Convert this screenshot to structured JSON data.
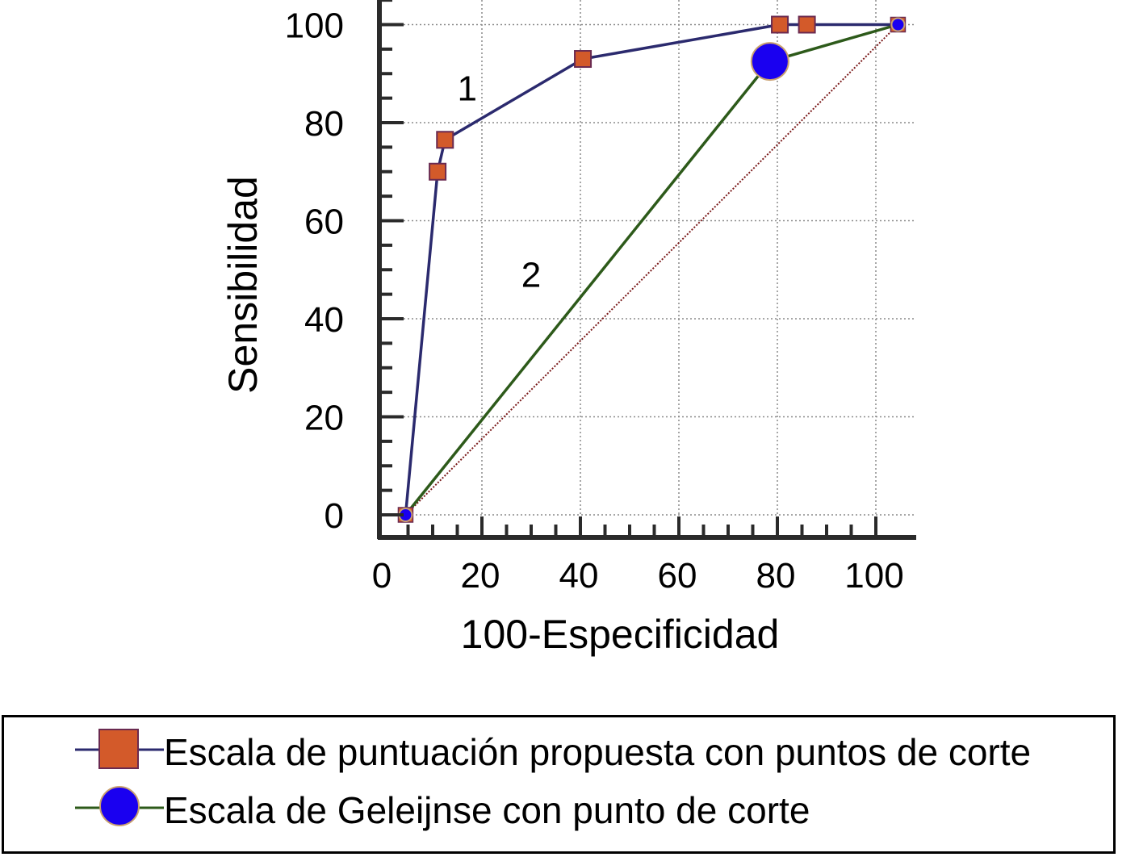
{
  "chart_data": {
    "type": "line",
    "xlabel": "100-Especificidad",
    "ylabel": "Sensibilidad",
    "xlim": [
      0,
      103
    ],
    "ylim": [
      -5,
      105
    ],
    "xticks": [
      0,
      20,
      40,
      60,
      80,
      100
    ],
    "yticks": [
      0,
      20,
      40,
      60,
      80,
      100
    ],
    "grid": true,
    "legend_position": "bottom",
    "series": [
      {
        "name": "Escala de puntuación propuesta con puntos de corte",
        "color": "#2b2a6e",
        "marker": "square",
        "marker_color": "#d35a2a",
        "x": [
          4.5,
          11,
          12.5,
          40.5,
          80.5,
          86,
          104.5
        ],
        "y": [
          0,
          70,
          76.5,
          93,
          100,
          100,
          100
        ]
      },
      {
        "name": "Escala de Geleijnse con punto de corte",
        "color": "#2d5a1a",
        "marker": "circle",
        "marker_color": "#1a00f0",
        "x": [
          4.5,
          78.5,
          104.5
        ],
        "y": [
          0,
          92.5,
          100
        ]
      }
    ],
    "reference_line": {
      "x": [
        4.5,
        104.5
      ],
      "y": [
        0,
        100
      ],
      "color": "#7a1a1a"
    },
    "annotations": [
      {
        "text": "1",
        "x": 17,
        "y": 87
      },
      {
        "text": "2",
        "x": 30,
        "y": 49
      }
    ]
  }
}
